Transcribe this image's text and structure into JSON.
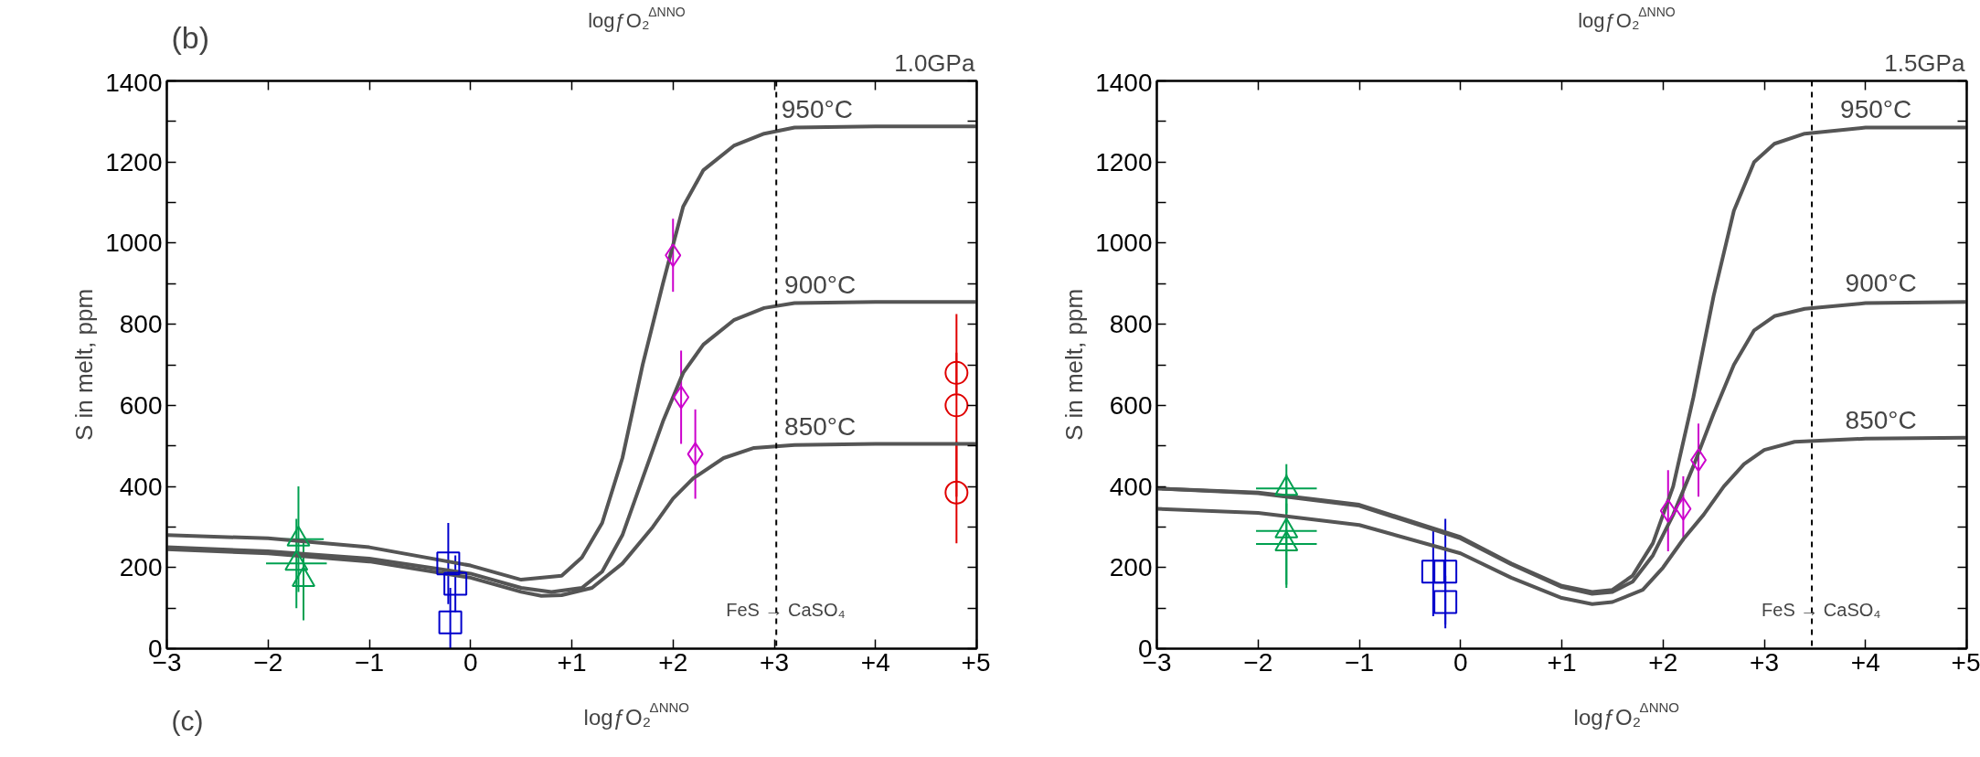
{
  "chart_data": [
    {
      "type": "scatter",
      "xlabel": "logƒO₂$^{ΔNNO}$",
      "ylabel": "S in melt, ppm",
      "xlim": [
        -3,
        5
      ],
      "ylim": [
        0,
        1400
      ],
      "xticks": [
        -3,
        -2,
        -1,
        0,
        {
          "value": 1,
          "label": "+1"
        },
        {
          "value": 2,
          "label": "+2"
        },
        {
          "value": 3,
          "label": "+3"
        },
        {
          "value": 4,
          "label": "+4"
        },
        {
          "value": 5,
          "label": "+5"
        }
      ],
      "yticks": [
        0,
        {
          "value": 100,
          "label": null
        },
        200,
        {
          "value": 300,
          "label": null
        },
        400,
        {
          "value": 500,
          "label": null
        },
        600,
        {
          "value": 700,
          "label": null
        },
        800,
        {
          "value": 900,
          "label": null
        },
        1000,
        {
          "value": 1100,
          "label": null
        },
        1200,
        {
          "value": 1300,
          "label": null
        },
        1400
      ],
      "grid": false,
      "ref_lines": [
        {
          "axis": "x",
          "value": 3.02,
          "label": null,
          "color": "#000000",
          "line_style": "dashed"
        }
      ],
      "annotations": [
        "(b)",
        "logƒO₂$^{ΔNNO}$",
        "1.0GPa",
        "(c)",
        {
          "text": "950°C",
          "x": 3.07,
          "y": 1290
        },
        {
          "text": "900°C",
          "x": 3.1,
          "y": 858
        },
        {
          "text": "850°C",
          "x": 3.1,
          "y": 508
        },
        {
          "text": "FeS → CaSO₄",
          "x": 3.02,
          "y": 95
        }
      ],
      "series": [
        {
          "type": "line",
          "color": "#555555",
          "x": [
            -3,
            -2,
            -1,
            0,
            0.5,
            0.9,
            1.1,
            1.3,
            1.5,
            1.7,
            1.9,
            2.1,
            2.3,
            2.6,
            2.9,
            3.2,
            4,
            5
          ],
          "values": [
            280,
            272,
            250,
            205,
            170,
            180,
            225,
            310,
            470,
            700,
            900,
            1090,
            1180,
            1240,
            1270,
            1285,
            1288,
            1288
          ]
        },
        {
          "type": "line",
          "color": "#555555",
          "x": [
            -3,
            -2,
            -1,
            0,
            0.5,
            0.8,
            1.1,
            1.3,
            1.5,
            1.7,
            1.9,
            2.1,
            2.3,
            2.6,
            2.9,
            3.2,
            4,
            5
          ],
          "values": [
            250,
            240,
            222,
            185,
            150,
            140,
            150,
            190,
            280,
            420,
            560,
            680,
            750,
            810,
            840,
            852,
            855,
            855
          ]
        },
        {
          "type": "line",
          "color": "#555555",
          "x": [
            -3,
            -2,
            -1,
            0,
            0.5,
            0.7,
            0.9,
            1.2,
            1.5,
            1.8,
            2.0,
            2.2,
            2.5,
            2.8,
            3.2,
            4,
            5
          ],
          "values": [
            245,
            235,
            215,
            175,
            140,
            130,
            132,
            150,
            210,
            300,
            370,
            420,
            470,
            495,
            502,
            505,
            505
          ]
        },
        {
          "color": "#00a050",
          "marker": "triangle",
          "x": [
            -1.7,
            -1.72,
            -1.65
          ],
          "values": [
            270,
            210,
            170
          ],
          "errors": [
            130,
            110,
            100
          ],
          "xerrors": [
            0.25,
            0.3,
            null
          ]
        },
        {
          "color": "#0000cc",
          "marker": "square",
          "x": [
            -0.22,
            -0.15,
            -0.2
          ],
          "values": [
            210,
            160,
            65
          ],
          "errors": [
            100,
            70,
            [
              0,
              150
            ]
          ]
        },
        {
          "color": "#cc00cc",
          "marker": "diamond",
          "x": [
            2.0,
            2.08,
            2.22
          ],
          "values": [
            970,
            620,
            480
          ],
          "errors": [
            90,
            115,
            110
          ]
        },
        {
          "color": "#e00000",
          "marker": "circle",
          "x": [
            4.8,
            4.8,
            4.8
          ],
          "values": [
            680,
            600,
            385
          ],
          "errors": [
            50,
            225,
            125
          ]
        }
      ]
    },
    {
      "type": "scatter",
      "xlabel": "logƒO₂$^{ΔNNO}$",
      "ylabel": "S in melt, ppm",
      "xlim": [
        -3,
        5
      ],
      "ylim": [
        0,
        1400
      ],
      "xticks": [
        -3,
        -2,
        -1,
        0,
        {
          "value": 1,
          "label": "+1"
        },
        {
          "value": 2,
          "label": "+2"
        },
        {
          "value": 3,
          "label": "+3"
        },
        {
          "value": 4,
          "label": "+4"
        },
        {
          "value": 5,
          "label": "+5"
        }
      ],
      "yticks": [
        0,
        {
          "value": 100,
          "label": null
        },
        200,
        {
          "value": 300,
          "label": null
        },
        400,
        {
          "value": 500,
          "label": null
        },
        600,
        {
          "value": 700,
          "label": null
        },
        800,
        {
          "value": 900,
          "label": null
        },
        1000,
        {
          "value": 1100,
          "label": null
        },
        1200,
        {
          "value": 1300,
          "label": null
        },
        1400
      ],
      "grid": false,
      "ref_lines": [
        {
          "axis": "x",
          "value": 3.47,
          "label": null,
          "color": "#000000",
          "line_style": "dashed"
        }
      ],
      "annotations": [
        "logƒO₂$^{ΔNNO}$",
        "1.5GPa",
        {
          "text": "950°C",
          "x": 3.75,
          "y": 1290
        },
        {
          "text": "900°C",
          "x": 3.8,
          "y": 862
        },
        {
          "text": "850°C",
          "x": 3.8,
          "y": 525
        },
        {
          "text": "FeS → CaSO₄",
          "x": 3.47,
          "y": 95
        }
      ],
      "series": [
        {
          "type": "line",
          "color": "#555555",
          "x": [
            -3,
            -2,
            -1,
            0,
            0.5,
            1,
            1.3,
            1.5,
            1.7,
            1.9,
            2.1,
            2.3,
            2.5,
            2.7,
            2.9,
            3.1,
            3.4,
            4,
            5
          ],
          "values": [
            395,
            385,
            355,
            275,
            210,
            155,
            140,
            145,
            180,
            260,
            400,
            620,
            870,
            1080,
            1200,
            1245,
            1270,
            1285,
            1285
          ]
        },
        {
          "type": "line",
          "color": "#555555",
          "x": [
            -3,
            -2,
            -1,
            0,
            0.5,
            1,
            1.3,
            1.5,
            1.7,
            1.9,
            2.1,
            2.3,
            2.5,
            2.7,
            2.9,
            3.1,
            3.4,
            4,
            5
          ],
          "values": [
            395,
            383,
            352,
            272,
            208,
            152,
            135,
            140,
            165,
            230,
            330,
            450,
            580,
            700,
            785,
            820,
            838,
            852,
            855
          ]
        },
        {
          "type": "line",
          "color": "#555555",
          "x": [
            -3,
            -2,
            -1,
            0,
            0.5,
            1,
            1.3,
            1.5,
            1.8,
            2.0,
            2.2,
            2.4,
            2.6,
            2.8,
            3.0,
            3.3,
            4,
            5
          ],
          "values": [
            345,
            335,
            305,
            235,
            175,
            125,
            110,
            115,
            145,
            200,
            270,
            330,
            400,
            455,
            490,
            510,
            518,
            520
          ]
        },
        {
          "color": "#00a050",
          "marker": "triangle",
          "x": [
            -1.72,
            -1.72,
            -1.72
          ],
          "values": [
            395,
            290,
            258
          ],
          "errors": [
            60,
            140,
            100
          ],
          "xerrors": [
            0.3,
            0.3,
            0.3
          ]
        },
        {
          "color": "#0000cc",
          "marker": "square",
          "x": [
            -0.27,
            -0.15,
            -0.15
          ],
          "values": [
            190,
            190,
            115
          ],
          "errors": [
            110,
            130,
            65
          ]
        },
        {
          "color": "#cc00cc",
          "marker": "diamond",
          "x": [
            2.05,
            2.2,
            2.35
          ],
          "values": [
            340,
            345,
            465
          ],
          "errors": [
            100,
            80,
            90
          ]
        }
      ]
    }
  ]
}
